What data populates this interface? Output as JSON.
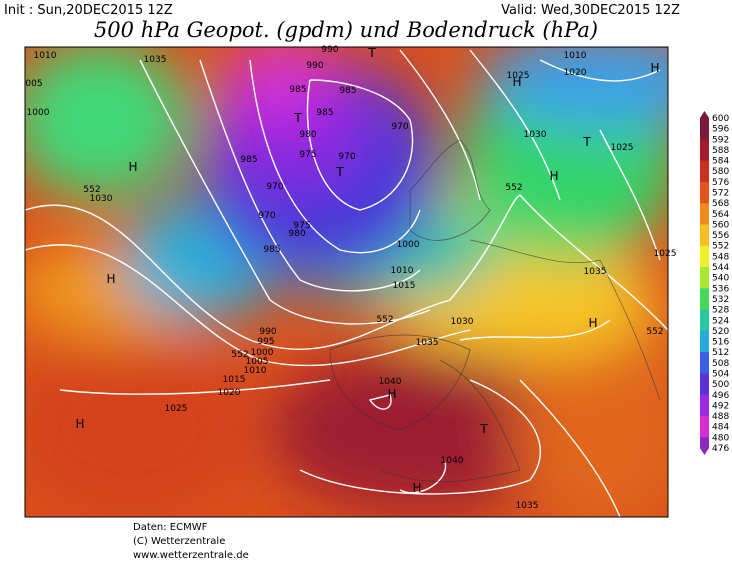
{
  "header": {
    "init": "Init : Sun,20DEC2015 12Z",
    "valid": "Valid: Wed,30DEC2015 12Z",
    "title": "500 hPa Geopot. (gpdm) und Bodendruck (hPa)"
  },
  "colorbar": {
    "labels": [
      "600",
      "596",
      "592",
      "588",
      "584",
      "580",
      "576",
      "572",
      "568",
      "564",
      "560",
      "556",
      "552",
      "548",
      "544",
      "540",
      "536",
      "532",
      "528",
      "524",
      "520",
      "516",
      "512",
      "508",
      "504",
      "500",
      "496",
      "492",
      "488",
      "484",
      "480",
      "476"
    ]
  },
  "map_labels": [
    "1010",
    "1035",
    "990",
    "990",
    "1025",
    "1020",
    "1010",
    "H",
    "005",
    "1000",
    "985",
    "985",
    "985",
    "970",
    "T",
    "980",
    "975",
    "970",
    "985",
    "T",
    "970",
    "970",
    "975",
    "980",
    "985",
    "1000",
    "1010",
    "1015",
    "1030",
    "1025",
    "H",
    "H",
    "1030",
    "552",
    "552",
    "1035",
    "1025",
    "H",
    "H",
    "990",
    "995",
    "1000",
    "1005",
    "1010",
    "1015",
    "1020",
    "1025",
    "1030",
    "1035",
    "1040",
    "H",
    "H",
    "T",
    "1040",
    "H",
    "1035",
    "552",
    "552",
    "H",
    "T",
    "T",
    "552"
  ],
  "footer": {
    "source": "Daten: ECMWF",
    "copyright": "(C) Wetterzentrale",
    "url": "www.wetterzentrale.de"
  }
}
